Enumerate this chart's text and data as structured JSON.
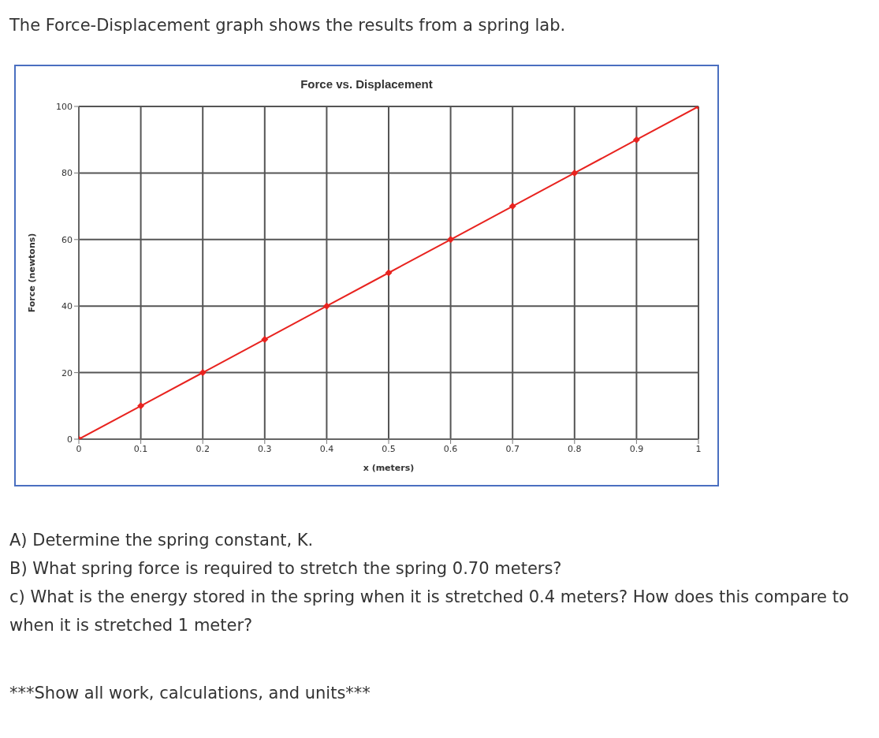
{
  "chart_data": {
    "type": "line",
    "title": "Force vs. Displacement",
    "xlabel": "x (meters)",
    "ylabel": "Force (newtons)",
    "x": [
      0,
      0.1,
      0.2,
      0.3,
      0.4,
      0.5,
      0.6,
      0.7,
      0.8,
      0.9,
      1
    ],
    "series": [
      {
        "color": "#e8231f",
        "values": [
          0,
          10,
          20,
          30,
          40,
          50,
          60,
          70,
          80,
          90,
          100
        ]
      }
    ],
    "xlim": [
      0,
      1
    ],
    "xticks": [
      0,
      0.1,
      0.2,
      0.3,
      0.4,
      0.5,
      0.6,
      0.7,
      0.8,
      0.9,
      1
    ],
    "ylim": [
      0,
      100
    ],
    "yticks": [
      0,
      20,
      40,
      60,
      80,
      100
    ],
    "grid": true,
    "marker": "diamond",
    "line_style": "solid",
    "annotations": [
      "The Force-Displacement graph shows the results from a spring lab.",
      "A) Determine the spring constant, K.",
      "B) What spring force is required to stretch the spring 0.70 meters?",
      "c) What is the energy stored in the spring when it is stretched 0.4 meters?  How does this compare to when it is stretched 1 meter?",
      "***Show all work, calculations, and units***"
    ]
  }
}
